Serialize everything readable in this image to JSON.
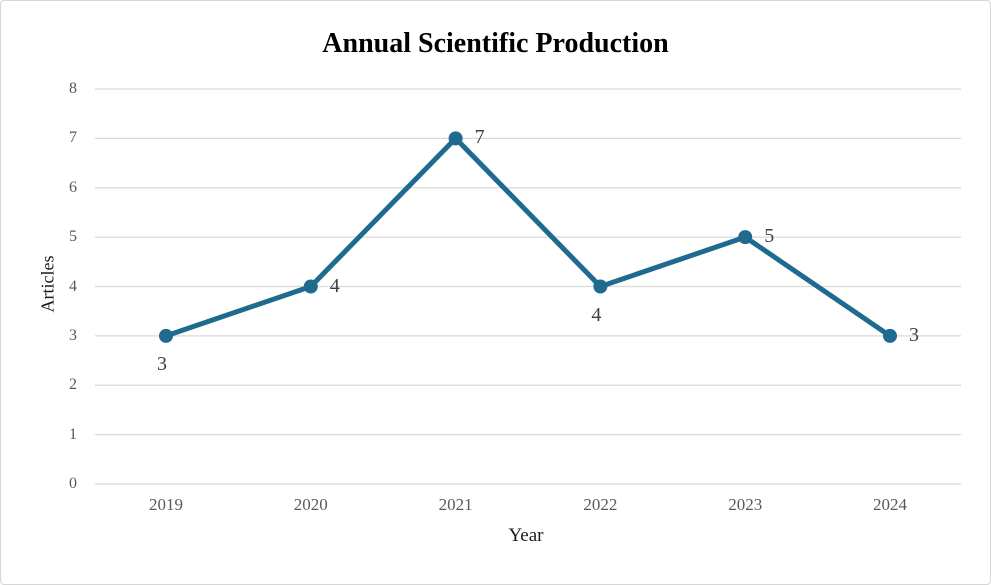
{
  "figure": {
    "background": "#ffffff",
    "border_color": "#d6d6d6"
  },
  "chart_data": {
    "type": "line",
    "title": "Annual Scientific Production",
    "xlabel": "Year",
    "ylabel": "Articles",
    "categories": [
      "2019",
      "2020",
      "2021",
      "2022",
      "2023",
      "2024"
    ],
    "values": [
      3,
      4,
      7,
      4,
      5,
      3
    ],
    "label_placements": [
      "below",
      "right",
      "right",
      "below",
      "right",
      "right"
    ],
    "ylim": [
      0,
      8
    ],
    "yticks": [
      0,
      1,
      2,
      3,
      4,
      5,
      6,
      7,
      8
    ],
    "grid": "horizontal",
    "legend": "none",
    "line_color": "#1E6B8F",
    "marker_color": "#1E6B8F",
    "grid_color": "#D9D9D9",
    "tick_label_color": "#595959",
    "data_label_color": "#404040",
    "title_color": "#000000",
    "axis_label_color": "#1a1a1a"
  }
}
